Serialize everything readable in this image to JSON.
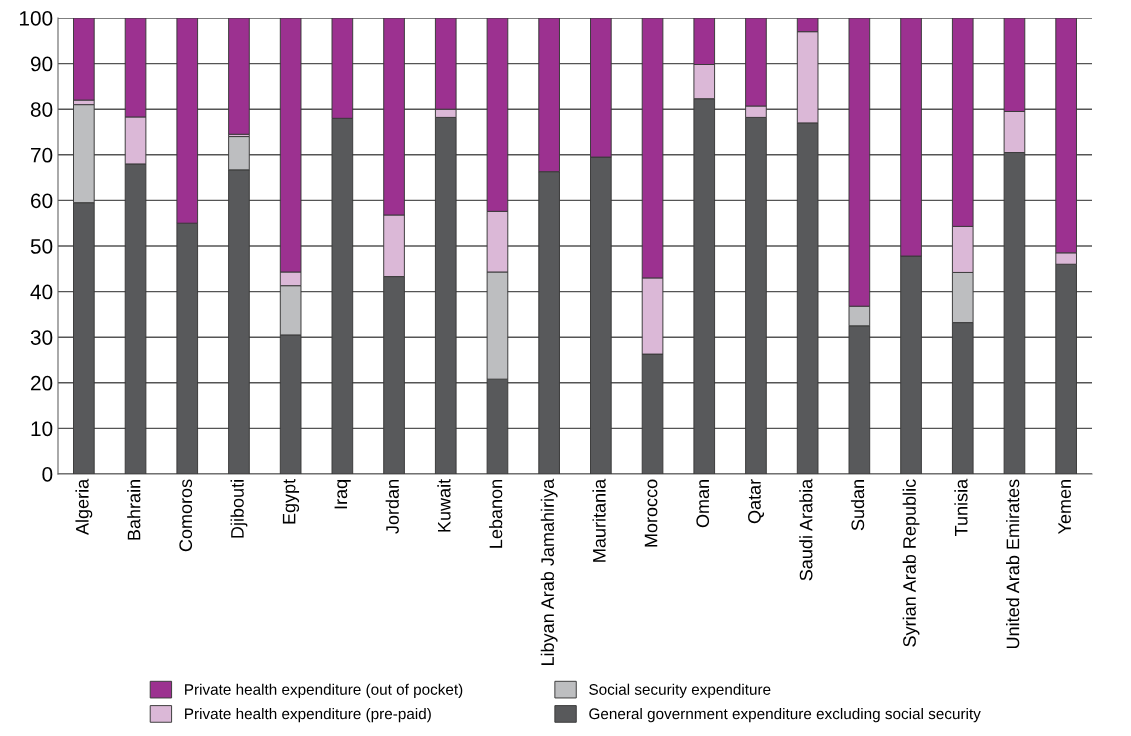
{
  "chart_data": {
    "type": "bar",
    "stacked": true,
    "categories": [
      "Algeria",
      "Bahrain",
      "Comoros",
      "Djibouti",
      "Egypt",
      "Iraq",
      "Jordan",
      "Kuwait",
      "Lebanon",
      "Libyan Arab Jamahiriya",
      "Mauritania",
      "Morocco",
      "Oman",
      "Qatar",
      "Saudi Arabia",
      "Sudan",
      "Syrian Arab Republic",
      "Tunisia",
      "United Arab Emirates",
      "Yemen"
    ],
    "series": [
      {
        "name": "General government expenditure excluding social security",
        "color": "#58595b",
        "values": [
          59.5,
          68,
          55,
          66.7,
          30.5,
          78,
          43.3,
          78.2,
          20.8,
          66.3,
          69.5,
          26.3,
          82.3,
          78.2,
          77,
          32.5,
          47.8,
          33.2,
          70.5,
          46
        ]
      },
      {
        "name": "Social security expenditure",
        "color": "#bdbec0",
        "values": [
          21.5,
          null,
          null,
          7.3,
          10.8,
          null,
          null,
          null,
          23.5,
          null,
          null,
          null,
          null,
          null,
          null,
          4.3,
          null,
          11,
          null,
          null
        ]
      },
      {
        "name": "Private health expenditure (pre-paid)",
        "color": "#dbb8d7",
        "values": [
          1,
          10.3,
          null,
          0.5,
          3,
          null,
          13.5,
          1.8,
          13.3,
          null,
          null,
          16.7,
          7.5,
          2.5,
          20,
          null,
          null,
          10.1,
          9,
          2.5
        ]
      },
      {
        "name": "Private health expenditure (out of pocket)",
        "color": "#9c3190",
        "values": [
          18,
          21.7,
          45,
          25.5,
          55.7,
          22,
          43.2,
          20,
          42.4,
          33.7,
          30.5,
          57,
          10.2,
          19.3,
          3,
          63.2,
          52.2,
          45.7,
          20.5,
          51.5
        ]
      }
    ],
    "ylim": [
      0,
      100
    ],
    "yticks": [
      0,
      10,
      20,
      30,
      40,
      50,
      60,
      70,
      80,
      90,
      100
    ],
    "grid": "y",
    "legend": "bottom"
  }
}
